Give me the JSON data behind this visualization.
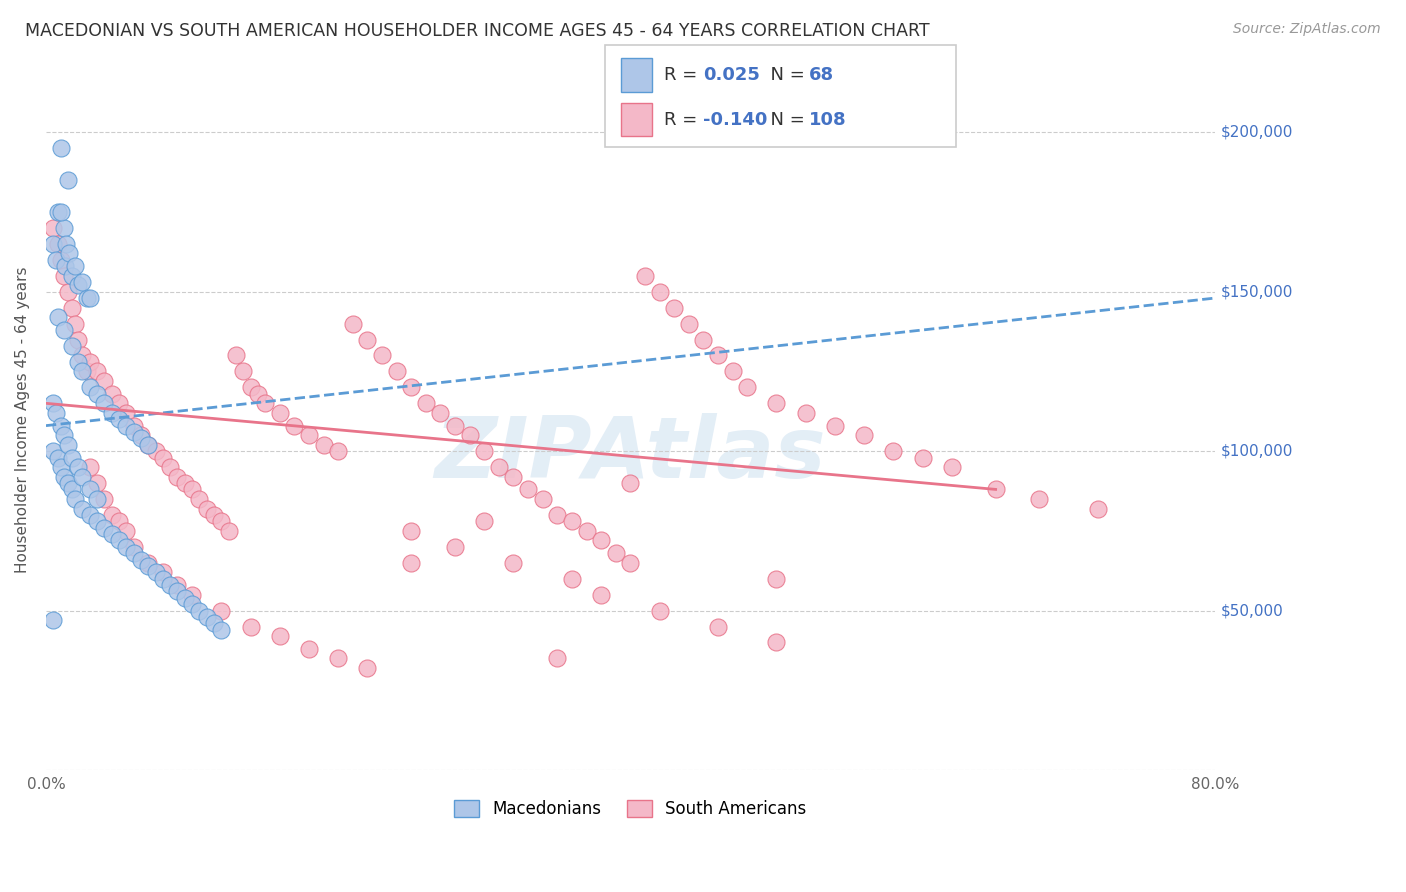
{
  "title": "MACEDONIAN VS SOUTH AMERICAN HOUSEHOLDER INCOME AGES 45 - 64 YEARS CORRELATION CHART",
  "source": "Source: ZipAtlas.com",
  "ylabel": "Householder Income Ages 45 - 64 years",
  "xlim": [
    0.0,
    0.8
  ],
  "ylim": [
    0,
    220000
  ],
  "yticks": [
    0,
    50000,
    100000,
    150000,
    200000
  ],
  "xticks": [
    0.0,
    0.1,
    0.2,
    0.3,
    0.4,
    0.5,
    0.6,
    0.7,
    0.8
  ],
  "xtick_labels": [
    "0.0%",
    "",
    "",
    "",
    "",
    "",
    "",
    "",
    "80.0%"
  ],
  "macedonian_color": "#aec6e8",
  "macedonian_edge": "#5b9bd5",
  "south_american_color": "#f4b8c8",
  "south_american_edge": "#e8748a",
  "trend_mac_color": "#5b9bd5",
  "trend_sa_color": "#e8748a",
  "mac_R": "0.025",
  "mac_N": "68",
  "sa_R": "-0.140",
  "sa_N": "108",
  "legend_R_color": "#4472c4",
  "legend_val_color": "#4472c4",
  "macedonian_x": [
    0.01,
    0.015,
    0.008,
    0.012,
    0.005,
    0.007,
    0.013,
    0.018,
    0.022,
    0.028,
    0.01,
    0.014,
    0.016,
    0.02,
    0.025,
    0.03,
    0.008,
    0.012,
    0.018,
    0.022,
    0.025,
    0.03,
    0.035,
    0.04,
    0.045,
    0.05,
    0.055,
    0.06,
    0.065,
    0.07,
    0.005,
    0.008,
    0.01,
    0.012,
    0.015,
    0.018,
    0.02,
    0.025,
    0.03,
    0.035,
    0.04,
    0.045,
    0.05,
    0.055,
    0.06,
    0.065,
    0.07,
    0.075,
    0.08,
    0.085,
    0.09,
    0.095,
    0.1,
    0.105,
    0.11,
    0.115,
    0.12,
    0.005,
    0.007,
    0.01,
    0.012,
    0.015,
    0.018,
    0.022,
    0.025,
    0.03,
    0.035,
    0.005
  ],
  "macedonian_y": [
    195000,
    185000,
    175000,
    170000,
    165000,
    160000,
    158000,
    155000,
    152000,
    148000,
    175000,
    165000,
    162000,
    158000,
    153000,
    148000,
    142000,
    138000,
    133000,
    128000,
    125000,
    120000,
    118000,
    115000,
    112000,
    110000,
    108000,
    106000,
    104000,
    102000,
    100000,
    98000,
    95000,
    92000,
    90000,
    88000,
    85000,
    82000,
    80000,
    78000,
    76000,
    74000,
    72000,
    70000,
    68000,
    66000,
    64000,
    62000,
    60000,
    58000,
    56000,
    54000,
    52000,
    50000,
    48000,
    46000,
    44000,
    115000,
    112000,
    108000,
    105000,
    102000,
    98000,
    95000,
    92000,
    88000,
    85000,
    47000
  ],
  "south_american_x": [
    0.005,
    0.008,
    0.01,
    0.012,
    0.015,
    0.018,
    0.02,
    0.022,
    0.025,
    0.028,
    0.03,
    0.035,
    0.04,
    0.045,
    0.05,
    0.055,
    0.06,
    0.065,
    0.07,
    0.075,
    0.08,
    0.085,
    0.09,
    0.095,
    0.1,
    0.105,
    0.11,
    0.115,
    0.12,
    0.125,
    0.13,
    0.135,
    0.14,
    0.145,
    0.15,
    0.16,
    0.17,
    0.18,
    0.19,
    0.2,
    0.21,
    0.22,
    0.23,
    0.24,
    0.25,
    0.26,
    0.27,
    0.28,
    0.29,
    0.3,
    0.31,
    0.32,
    0.33,
    0.34,
    0.35,
    0.36,
    0.37,
    0.38,
    0.39,
    0.4,
    0.41,
    0.42,
    0.43,
    0.44,
    0.45,
    0.46,
    0.47,
    0.48,
    0.5,
    0.52,
    0.54,
    0.56,
    0.58,
    0.6,
    0.62,
    0.65,
    0.68,
    0.72,
    0.03,
    0.035,
    0.04,
    0.045,
    0.05,
    0.055,
    0.06,
    0.07,
    0.08,
    0.09,
    0.1,
    0.12,
    0.14,
    0.16,
    0.18,
    0.2,
    0.22,
    0.25,
    0.28,
    0.32,
    0.36,
    0.38,
    0.42,
    0.46,
    0.5,
    0.4,
    0.35,
    0.3,
    0.25,
    0.5
  ],
  "south_american_y": [
    170000,
    165000,
    160000,
    155000,
    150000,
    145000,
    140000,
    135000,
    130000,
    125000,
    128000,
    125000,
    122000,
    118000,
    115000,
    112000,
    108000,
    105000,
    102000,
    100000,
    98000,
    95000,
    92000,
    90000,
    88000,
    85000,
    82000,
    80000,
    78000,
    75000,
    130000,
    125000,
    120000,
    118000,
    115000,
    112000,
    108000,
    105000,
    102000,
    100000,
    140000,
    135000,
    130000,
    125000,
    120000,
    115000,
    112000,
    108000,
    105000,
    100000,
    95000,
    92000,
    88000,
    85000,
    80000,
    78000,
    75000,
    72000,
    68000,
    65000,
    155000,
    150000,
    145000,
    140000,
    135000,
    130000,
    125000,
    120000,
    115000,
    112000,
    108000,
    105000,
    100000,
    98000,
    95000,
    88000,
    85000,
    82000,
    95000,
    90000,
    85000,
    80000,
    78000,
    75000,
    70000,
    65000,
    62000,
    58000,
    55000,
    50000,
    45000,
    42000,
    38000,
    35000,
    32000,
    75000,
    70000,
    65000,
    60000,
    55000,
    50000,
    45000,
    40000,
    90000,
    35000,
    78000,
    65000,
    60000
  ],
  "mac_trend_x": [
    0.0,
    0.8
  ],
  "mac_trend_y": [
    108000,
    148000
  ],
  "sa_trend_x": [
    0.0,
    0.65
  ],
  "sa_trend_y": [
    115000,
    88000
  ],
  "watermark": "ZIPAtlas"
}
